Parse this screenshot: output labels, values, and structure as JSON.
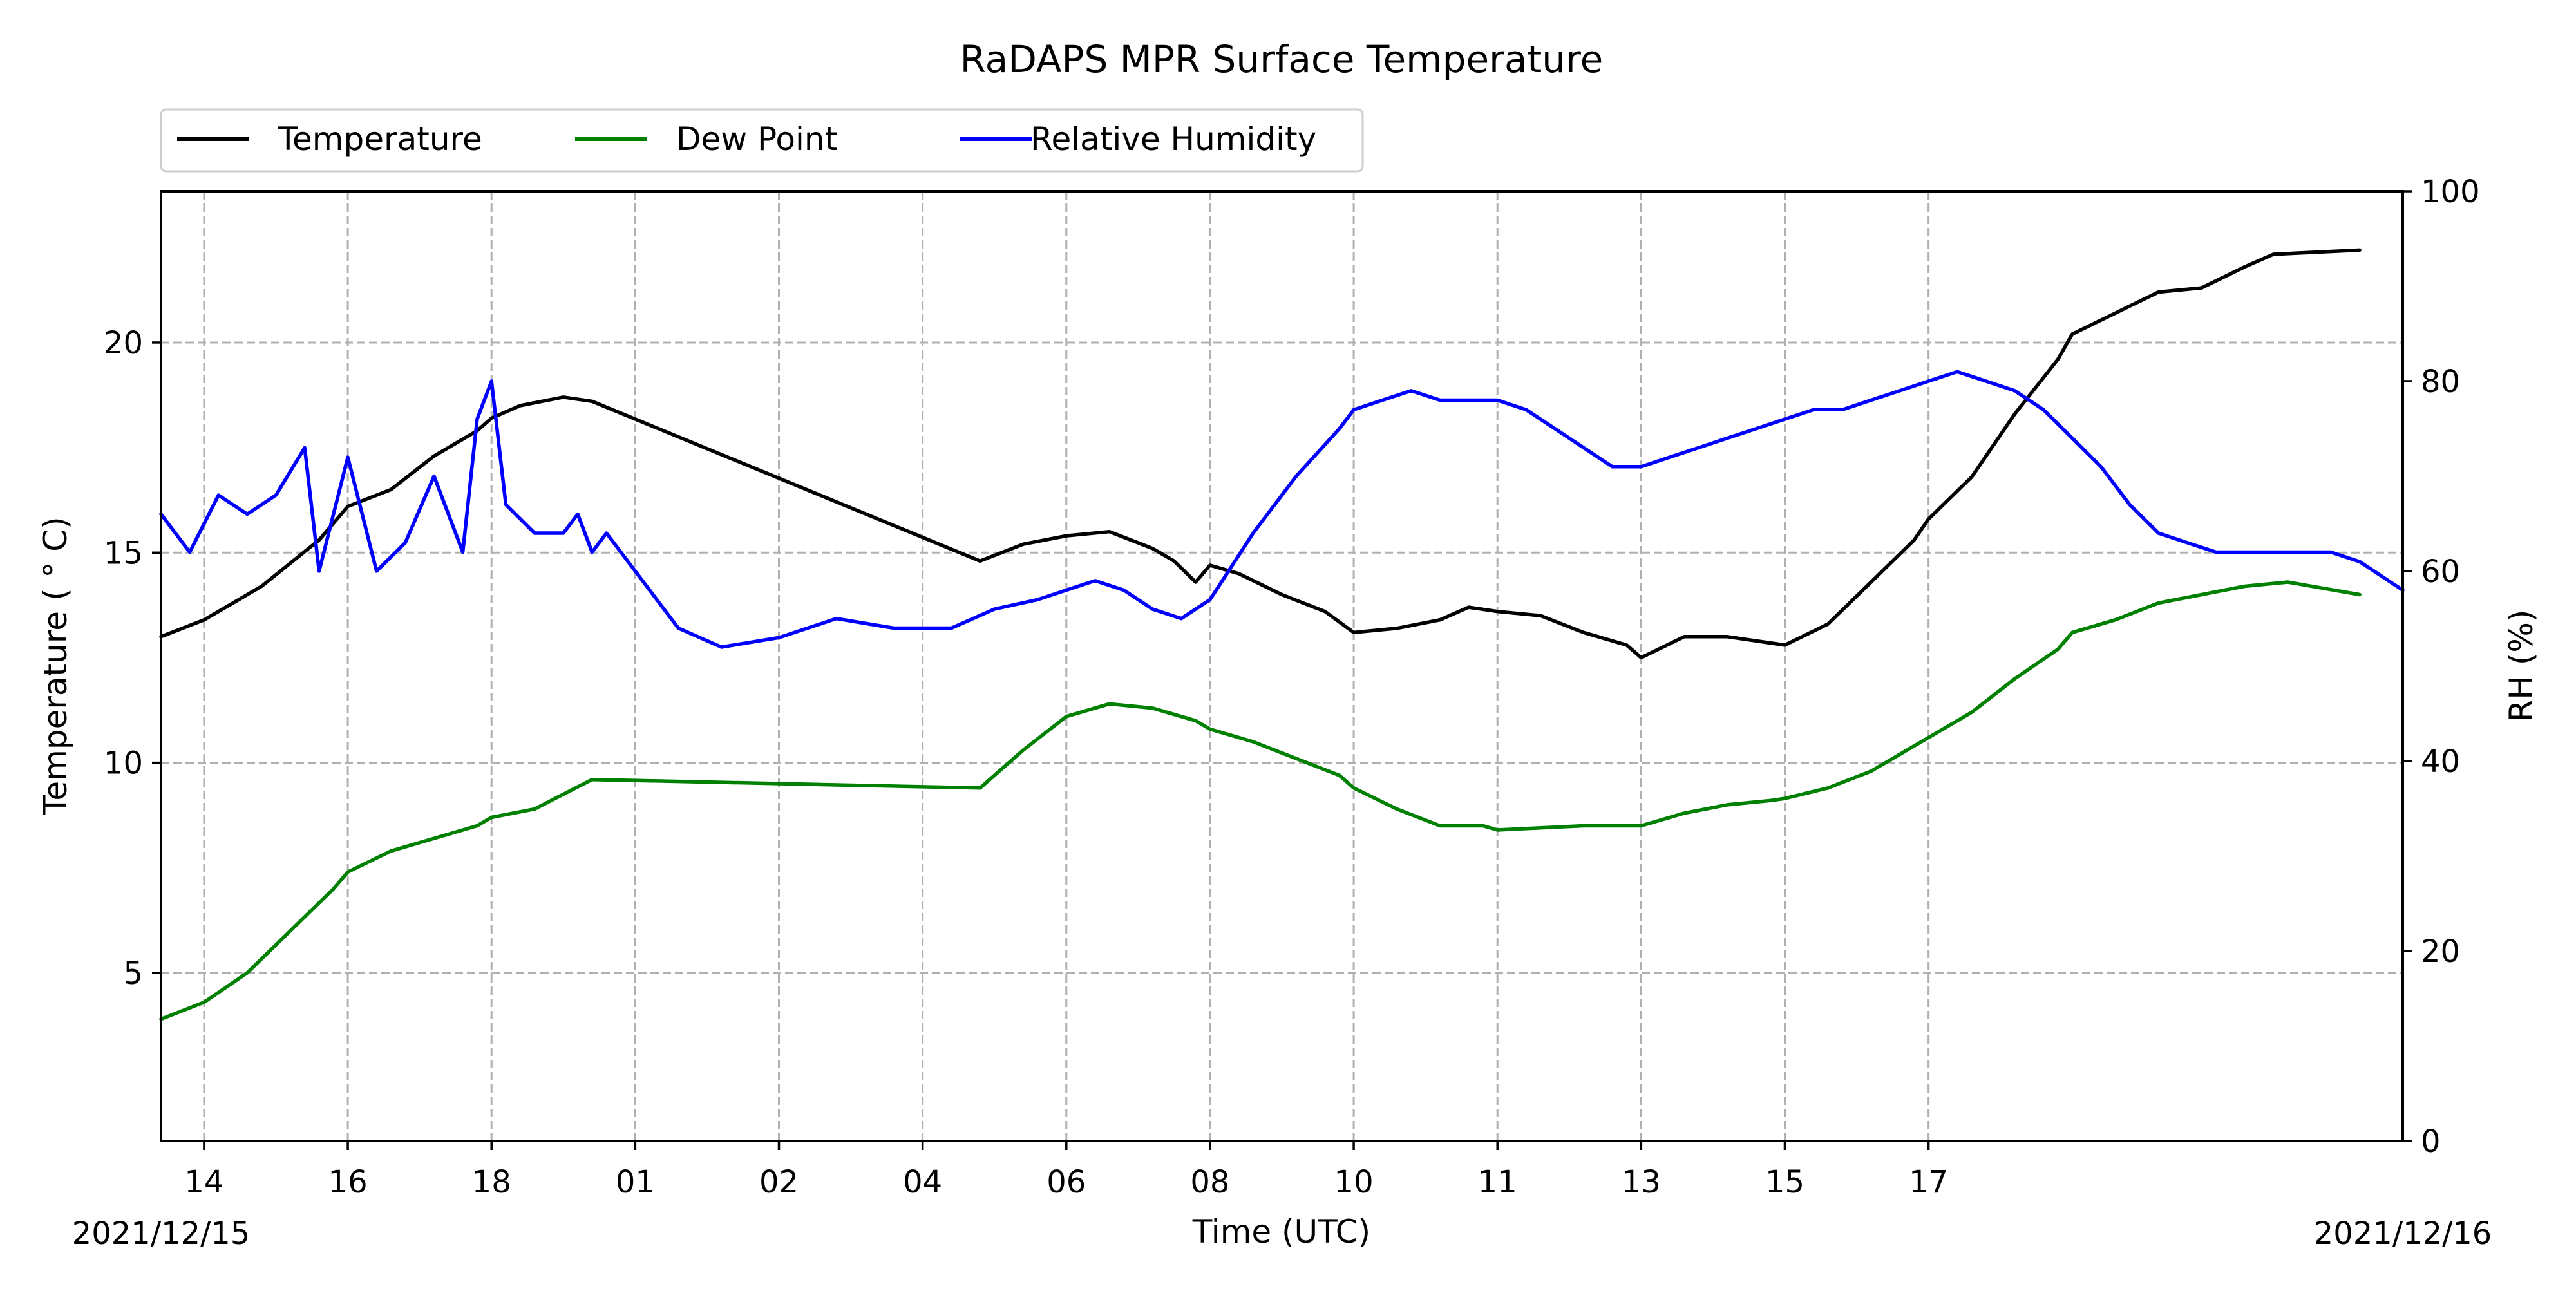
{
  "chart_data": {
    "type": "line",
    "title": "RaDAPS MPR Surface Temperature",
    "xlabel": "Time (UTC)",
    "ylabel_left": "Temperature ($^\\circ$C)",
    "ylabel_left_display": "Temperature ( ° C)",
    "ylabel_right": "RH (%)",
    "date_left": "2021/12/15",
    "date_right": "2021/12/16",
    "xlim_index": [
      -0.3,
      15.3
    ],
    "ylim_left": [
      1,
      23.6
    ],
    "ylim_right": [
      0,
      100
    ],
    "grid": true,
    "legend_position": "top-left, above plot",
    "x_ticks": [
      "14",
      "16",
      "18",
      "01",
      "02",
      "04",
      "06",
      "08",
      "10",
      "11",
      "13",
      "15",
      "17"
    ],
    "y_ticks_left": [
      5,
      10,
      15,
      20
    ],
    "y_ticks_right": [
      0,
      20,
      40,
      60,
      80,
      100
    ],
    "x_tick_positions_note": "x values are evenly spaced tick indices 0..12 (tick labels are hours, UTC)",
    "series": [
      {
        "name": "Temperature",
        "axis": "left",
        "color": "#000000",
        "x": [
          -0.3,
          0.0,
          0.4,
          0.8,
          1.0,
          1.3,
          1.6,
          1.9,
          2.0,
          2.2,
          2.5,
          2.7,
          5.4,
          5.7,
          6.0,
          6.3,
          6.6,
          6.75,
          6.9,
          7.0,
          7.2,
          7.5,
          7.8,
          8.0,
          8.3,
          8.6,
          8.8,
          9.0,
          9.3,
          9.6,
          9.9,
          10.0,
          10.3,
          10.6,
          11.0,
          11.3,
          11.6,
          11.9,
          12.0,
          12.3,
          12.6,
          12.9,
          13.0,
          13.3,
          13.6,
          13.9,
          14.2,
          14.4,
          15.0
        ],
        "y": [
          13.0,
          13.4,
          14.2,
          15.3,
          16.1,
          16.5,
          17.3,
          17.9,
          18.2,
          18.5,
          18.7,
          18.6,
          14.8,
          15.2,
          15.4,
          15.5,
          15.1,
          14.8,
          14.3,
          14.7,
          14.5,
          14.0,
          13.6,
          13.1,
          13.2,
          13.4,
          13.7,
          13.6,
          13.5,
          13.1,
          12.8,
          12.5,
          13.0,
          13.0,
          12.8,
          13.3,
          14.3,
          15.3,
          15.8,
          16.8,
          18.3,
          19.6,
          20.2,
          20.7,
          21.2,
          21.3,
          21.8,
          22.1,
          22.2
        ]
      },
      {
        "name": "Dew Point",
        "axis": "left",
        "color": "#008000",
        "x": [
          -0.3,
          0.0,
          0.3,
          0.6,
          0.9,
          1.0,
          1.3,
          1.6,
          1.9,
          2.0,
          2.3,
          2.7,
          5.4,
          5.7,
          6.0,
          6.3,
          6.6,
          6.9,
          7.0,
          7.3,
          7.6,
          7.9,
          8.0,
          8.3,
          8.6,
          8.9,
          9.0,
          9.3,
          9.6,
          9.9,
          10.0,
          10.3,
          10.6,
          10.9,
          11.0,
          11.3,
          11.6,
          11.9,
          12.0,
          12.3,
          12.6,
          12.9,
          13.0,
          13.3,
          13.6,
          13.9,
          14.2,
          14.5,
          15.0
        ],
        "y": [
          3.9,
          4.3,
          5.0,
          6.0,
          7.0,
          7.4,
          7.9,
          8.2,
          8.5,
          8.7,
          8.9,
          9.6,
          9.4,
          10.3,
          11.1,
          11.4,
          11.3,
          11.0,
          10.8,
          10.5,
          10.1,
          9.7,
          9.4,
          8.9,
          8.5,
          8.5,
          8.4,
          8.45,
          8.5,
          8.5,
          8.5,
          8.8,
          9.0,
          9.1,
          9.15,
          9.4,
          9.8,
          10.4,
          10.6,
          11.2,
          12.0,
          12.7,
          13.1,
          13.4,
          13.8,
          14.0,
          14.2,
          14.3,
          14.0
        ]
      },
      {
        "name": "Relative Humidity",
        "axis": "right",
        "color": "#0000ff",
        "x": [
          -0.3,
          -0.1,
          0.1,
          0.3,
          0.5,
          0.7,
          0.8,
          0.9,
          1.0,
          1.2,
          1.4,
          1.6,
          1.8,
          1.9,
          2.0,
          2.1,
          2.3,
          2.5,
          2.6,
          2.7,
          2.8,
          3.0,
          3.3,
          3.6,
          4.0,
          4.4,
          4.8,
          5.2,
          5.5,
          5.8,
          6.0,
          6.2,
          6.4,
          6.6,
          6.8,
          7.0,
          7.3,
          7.6,
          7.9,
          8.0,
          8.2,
          8.4,
          8.6,
          8.8,
          9.0,
          9.2,
          9.4,
          9.6,
          9.8,
          10.0,
          10.2,
          10.4,
          10.6,
          10.8,
          11.0,
          11.2,
          11.4,
          11.6,
          11.8,
          12.0,
          12.2,
          12.4,
          12.6,
          12.8,
          13.0,
          13.2,
          13.4,
          13.6,
          13.8,
          14.0,
          14.2,
          14.4,
          14.6,
          14.8,
          15.0,
          15.3
        ],
        "y": [
          66,
          62,
          68,
          66,
          68,
          73,
          60,
          66,
          72,
          60,
          63,
          70,
          62,
          76,
          80,
          67,
          64,
          64,
          66,
          62,
          64,
          60,
          54,
          52,
          53,
          55,
          54,
          54,
          56,
          57,
          58,
          59,
          58,
          56,
          55,
          57,
          64,
          70,
          75,
          77,
          78,
          79,
          78,
          78,
          78,
          77,
          75,
          73,
          71,
          71,
          72,
          73,
          74,
          75,
          76,
          77,
          77,
          78,
          79,
          80,
          81,
          80,
          79,
          77,
          74,
          71,
          67,
          64,
          63,
          62,
          62,
          62,
          62,
          62,
          61,
          58
        ]
      }
    ]
  }
}
